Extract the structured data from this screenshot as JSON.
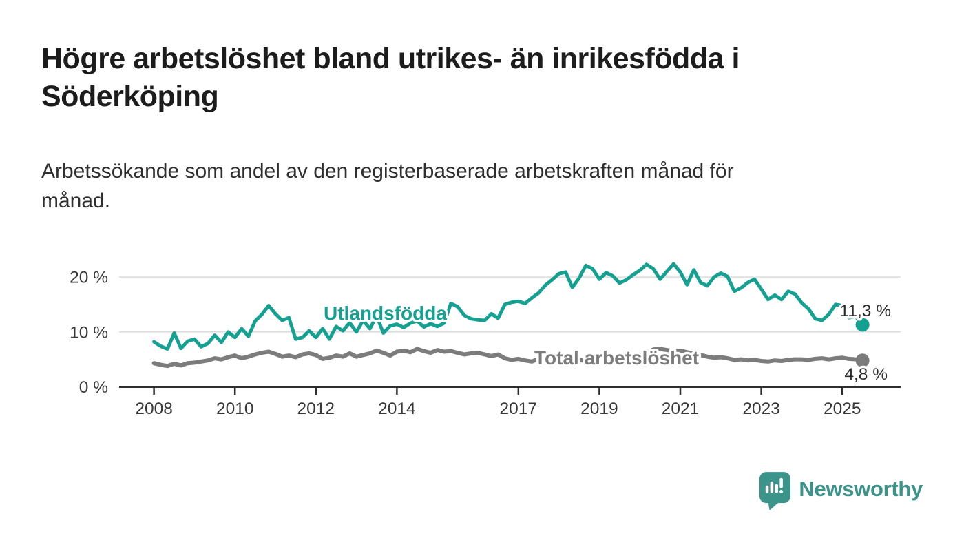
{
  "header": {
    "title": "Högre arbetslöshet bland utrikes- än inrikesfödda i\nSöderköping",
    "subtitle": "Arbetssökande som andel av den registerbaserade arbetskraften månad för\nmånad."
  },
  "branding": {
    "logo_text": "Newsworthy",
    "logo_icon": "bar-chart-speech-bubble-icon",
    "logo_color": "#3B948A"
  },
  "chart_data": {
    "type": "line",
    "unit": "%",
    "x_start": 2008.0,
    "x_step_years": 0.1666667,
    "x_axis_range": [
      2007.15,
      2026.4
    ],
    "ylim": [
      0,
      22.5
    ],
    "grid": "horizontal",
    "colors": {
      "grid": "#DBDBDB",
      "axis": "#2E2E2E",
      "tick_text": "#383838",
      "end_label_text": "#2D2D2D"
    },
    "yticks": [
      {
        "value": 0,
        "label": "0 %"
      },
      {
        "value": 10,
        "label": "10 %"
      },
      {
        "value": 20,
        "label": "20 %"
      }
    ],
    "xticks": [
      {
        "value": 2008,
        "label": "2008"
      },
      {
        "value": 2010,
        "label": "2010"
      },
      {
        "value": 2012,
        "label": "2012"
      },
      {
        "value": 2014,
        "label": "2014"
      },
      {
        "value": 2017,
        "label": "2017"
      },
      {
        "value": 2019,
        "label": "2019"
      },
      {
        "value": 2021,
        "label": "2021"
      },
      {
        "value": 2023,
        "label": "2023"
      },
      {
        "value": 2025,
        "label": "2025"
      }
    ],
    "series": [
      {
        "name": "Utlandsfödda",
        "color": "#14A191",
        "end_label": "11,3 %",
        "end_value": 11.3,
        "values": [
          8.2,
          7.4,
          6.9,
          9.8,
          7.0,
          8.3,
          8.7,
          7.3,
          7.9,
          9.4,
          8.1,
          10.0,
          9.0,
          10.6,
          9.2,
          12.0,
          13.2,
          14.8,
          13.3,
          12.1,
          12.6,
          8.7,
          9.0,
          10.2,
          9.0,
          10.6,
          8.7,
          11.0,
          10.2,
          11.7,
          10.0,
          12.1,
          10.6,
          12.9,
          9.8,
          11.1,
          11.4,
          10.8,
          11.6,
          12.0,
          10.9,
          11.5,
          11.0,
          11.6,
          15.2,
          14.6,
          13.0,
          12.4,
          12.2,
          12.1,
          13.3,
          12.5,
          15.0,
          15.4,
          15.6,
          15.2,
          16.2,
          17.1,
          18.5,
          19.5,
          20.6,
          20.9,
          18.1,
          19.8,
          22.1,
          21.5,
          19.6,
          20.8,
          20.2,
          18.9,
          19.5,
          20.4,
          21.2,
          22.3,
          21.5,
          19.6,
          21.0,
          22.4,
          20.9,
          18.6,
          21.3,
          19.0,
          18.4,
          20.0,
          20.7,
          20.1,
          17.4,
          18.0,
          19.0,
          19.6,
          17.8,
          15.9,
          16.7,
          15.9,
          17.4,
          16.9,
          15.3,
          14.2,
          12.4,
          12.1,
          13.2,
          15.0,
          14.8,
          12.6,
          12.8,
          11.3
        ]
      },
      {
        "name": "Total arbetslöshet",
        "color": "#7C7C7C",
        "end_label": "4,8 %",
        "end_value": 4.8,
        "values": [
          4.3,
          4.0,
          3.8,
          4.2,
          3.9,
          4.3,
          4.4,
          4.6,
          4.8,
          5.2,
          5.0,
          5.4,
          5.7,
          5.2,
          5.5,
          5.9,
          6.2,
          6.4,
          6.0,
          5.5,
          5.7,
          5.4,
          5.9,
          6.1,
          5.8,
          5.1,
          5.3,
          5.7,
          5.5,
          6.1,
          5.5,
          5.8,
          6.1,
          6.6,
          6.2,
          5.7,
          6.4,
          6.6,
          6.3,
          6.9,
          6.5,
          6.2,
          6.7,
          6.4,
          6.5,
          6.2,
          5.9,
          6.1,
          6.2,
          5.9,
          5.6,
          5.9,
          5.2,
          4.9,
          5.1,
          4.8,
          4.6,
          5.1,
          4.9,
          4.7,
          5.0,
          4.8,
          4.6,
          4.9,
          4.7,
          4.9,
          5.1,
          4.9,
          5.1,
          5.3,
          5.2,
          5.5,
          5.7,
          6.2,
          6.8,
          6.9,
          6.7,
          6.5,
          6.6,
          6.3,
          6.0,
          5.8,
          5.5,
          5.3,
          5.4,
          5.2,
          4.9,
          5.0,
          4.8,
          4.9,
          4.7,
          4.6,
          4.8,
          4.7,
          4.9,
          5.0,
          5.0,
          4.9,
          5.1,
          5.2,
          5.0,
          5.2,
          5.3,
          5.1,
          5.0,
          4.8
        ]
      }
    ]
  }
}
